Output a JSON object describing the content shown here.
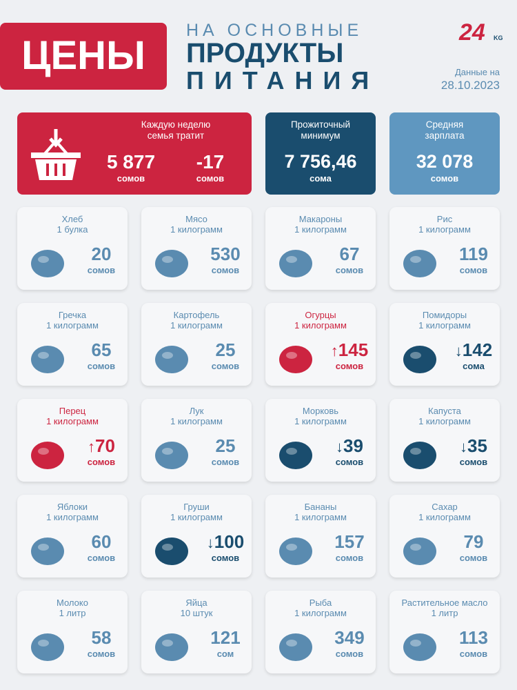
{
  "header": {
    "title": "ЦЕНЫ",
    "subtitle": [
      "НА ОСНОВНЫЕ",
      "ПРОДУКТЫ",
      "ПИТАНИЯ"
    ],
    "logo": "24",
    "logo_suffix": "KG",
    "date_label": "Данные на",
    "date": "28.10.2023"
  },
  "summary": {
    "weekly": {
      "label": [
        "Каждую неделю",
        "семья тратит"
      ],
      "value": "5 877",
      "unit": "сомов",
      "change": "-17",
      "change_unit": "сомов"
    },
    "minimum": {
      "label": [
        "Прожиточный",
        "минимум"
      ],
      "value": "7 756,46",
      "unit": "сома"
    },
    "salary": {
      "label": [
        "Средняя",
        "зарплата"
      ],
      "value": "32 078",
      "unit": "сомов"
    }
  },
  "products": [
    {
      "name": "Хлеб",
      "quantity": "1 булка",
      "price": 20,
      "unit": "сомов"
    },
    {
      "name": "Мясо",
      "quantity": "1 килограмм",
      "price": 530,
      "unit": "сомов"
    },
    {
      "name": "Макароны",
      "quantity": "1 килограмм",
      "price": 67,
      "unit": "сомов"
    },
    {
      "name": "Рис",
      "quantity": "1 килограмм",
      "price": 119,
      "unit": "сомов"
    },
    {
      "name": "Гречка",
      "quantity": "1 килограмм",
      "price": 65,
      "unit": "сомов"
    },
    {
      "name": "Картофель",
      "quantity": "1 килограмм",
      "price": 25,
      "unit": "сомов"
    },
    {
      "name": "Огурцы",
      "quantity": "1 килограмм",
      "price": 145,
      "unit": "сомов",
      "trend": "up",
      "arrow": "↑"
    },
    {
      "name": "Помидоры",
      "quantity": "1 килограмм",
      "price": 142,
      "unit": "сома",
      "trend": "down",
      "arrow": "↓"
    },
    {
      "name": "Перец",
      "quantity": "1 килограмм",
      "price": 70,
      "unit": "сомов",
      "trend": "up",
      "arrow": "↑"
    },
    {
      "name": "Лук",
      "quantity": "1 килограмм",
      "price": 25,
      "unit": "сомов"
    },
    {
      "name": "Морковь",
      "quantity": "1 килограмм",
      "price": 39,
      "unit": "сомов",
      "trend": "down",
      "arrow": "↓"
    },
    {
      "name": "Капуста",
      "quantity": "1 килограмм",
      "price": 35,
      "unit": "сомов",
      "trend": "down",
      "arrow": "↓"
    },
    {
      "name": "Яблоки",
      "quantity": "1 килограмм",
      "price": 60,
      "unit": "сомов"
    },
    {
      "name": "Груши",
      "quantity": "1 килограмм",
      "price": 100,
      "unit": "сомов",
      "trend": "down",
      "arrow": "↓"
    },
    {
      "name": "Бананы",
      "quantity": "1 килограмм",
      "price": 157,
      "unit": "сомов"
    },
    {
      "name": "Сахар",
      "quantity": "1 килограмм",
      "price": 79,
      "unit": "сомов"
    },
    {
      "name": "Молоко",
      "quantity": "1 литр",
      "price": 58,
      "unit": "сомов"
    },
    {
      "name": "Яйца",
      "quantity": "10 штук",
      "price": 121,
      "unit": "сом"
    },
    {
      "name": "Рыба",
      "quantity": "1 килограмм",
      "price": 349,
      "unit": "сомов"
    },
    {
      "name": "Растительное масло",
      "quantity": "1 литр",
      "price": 113,
      "unit": "сомов"
    }
  ]
}
